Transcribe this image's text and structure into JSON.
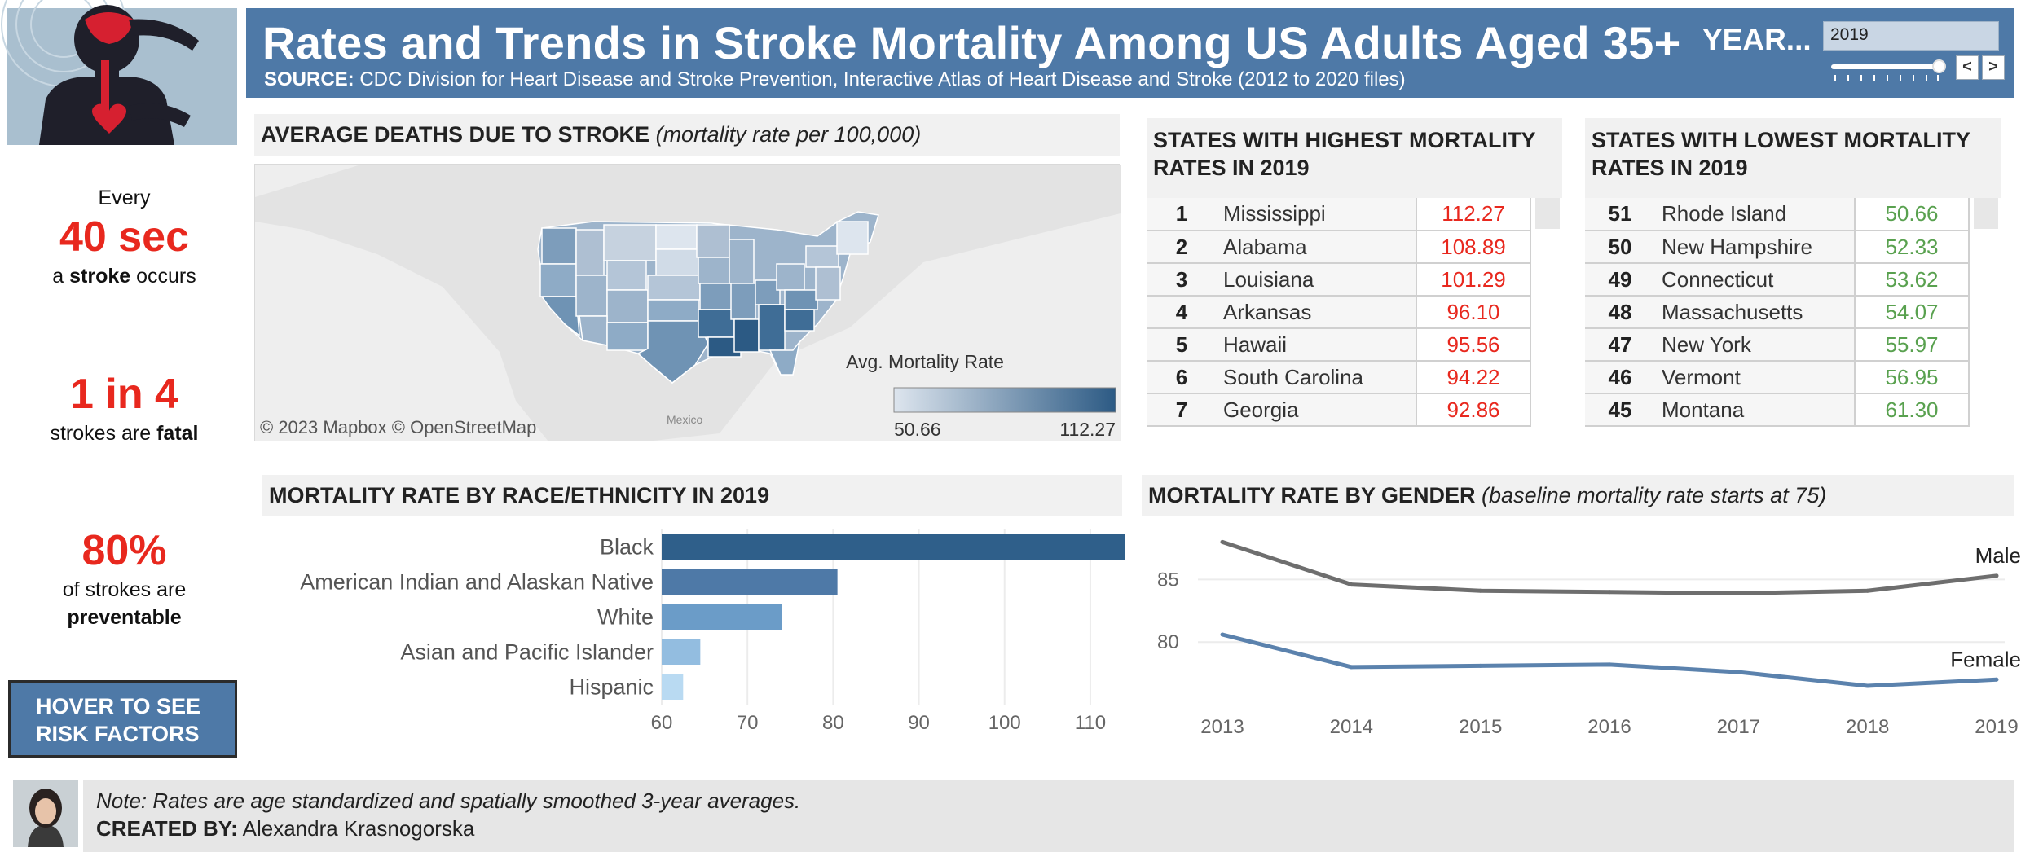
{
  "header": {
    "title": "Rates and Trends in Stroke Mortality Among US Adults Aged 35+",
    "source_label": "SOURCE:",
    "source_text": "CDC Division for Heart Disease and Stroke Prevention, Interactive Atlas of Heart Disease and Stroke (2012 to 2020 files)",
    "year_label": "YEAR...",
    "year_value": "2019",
    "year_slider_fraction": 1.0,
    "prev_glyph": "<",
    "next_glyph": ">"
  },
  "stats": [
    {
      "pre": "Every",
      "big": "40 sec",
      "post_plain": "a ",
      "post_bold": "stroke",
      "post_tail": " occurs",
      "post2_plain": "",
      "post2_bold": ""
    },
    {
      "pre": "",
      "big": "1 in 4",
      "post_plain": "strokes are ",
      "post_bold": "fatal",
      "post_tail": "",
      "post2_plain": "",
      "post2_bold": ""
    },
    {
      "pre": "",
      "big": "80%",
      "post_plain": "of strokes are",
      "post_bold": "",
      "post_tail": "",
      "post2_plain": "",
      "post2_bold": "preventable"
    }
  ],
  "hover_button": {
    "line1": "HOVER TO SEE",
    "line2": "RISK FACTORS"
  },
  "map_panel": {
    "title_bold": "AVERAGE DEATHS DUE TO STROKE",
    "title_italic": "(mortality rate per 100,000)",
    "legend_title": "Avg. Mortality Rate",
    "legend_min": "50.66",
    "legend_max": "112.27",
    "attribution": "© 2023 Mapbox  © OpenStreetMap",
    "mexico_label": "Mexico",
    "colors": {
      "low": "#dde5ee",
      "high": "#2c5a84"
    }
  },
  "highest_table": {
    "title": "STATES WITH HIGHEST MORTALITY RATES IN 2019",
    "rows": [
      {
        "rank": "1",
        "state": "Mississippi",
        "value": "112.27"
      },
      {
        "rank": "2",
        "state": "Alabama",
        "value": "108.89"
      },
      {
        "rank": "3",
        "state": "Louisiana",
        "value": "101.29"
      },
      {
        "rank": "4",
        "state": "Arkansas",
        "value": "96.10"
      },
      {
        "rank": "5",
        "state": "Hawaii",
        "value": "95.56"
      },
      {
        "rank": "6",
        "state": "South Carolina",
        "value": "94.22"
      },
      {
        "rank": "7",
        "state": "Georgia",
        "value": "92.86"
      }
    ]
  },
  "lowest_table": {
    "title": "STATES WITH LOWEST MORTALITY RATES IN 2019",
    "rows": [
      {
        "rank": "51",
        "state": "Rhode Island",
        "value": "50.66"
      },
      {
        "rank": "50",
        "state": "New Hampshire",
        "value": "52.33"
      },
      {
        "rank": "49",
        "state": "Connecticut",
        "value": "53.62"
      },
      {
        "rank": "48",
        "state": "Massachusetts",
        "value": "54.07"
      },
      {
        "rank": "47",
        "state": "New York",
        "value": "55.97"
      },
      {
        "rank": "46",
        "state": "Vermont",
        "value": "56.95"
      },
      {
        "rank": "45",
        "state": "Montana",
        "value": "61.30"
      }
    ]
  },
  "race_panel": {
    "title_bold": "MORTALITY RATE BY RACE/ETHNICITY IN 2019"
  },
  "gender_panel": {
    "title_bold": "MORTALITY RATE BY GENDER",
    "title_italic": "(baseline mortality rate starts at 75)"
  },
  "chart_data": [
    {
      "type": "bar",
      "orientation": "horizontal",
      "title": "MORTALITY RATE BY RACE/ETHNICITY IN 2019",
      "categories": [
        "Black",
        "American Indian and Alaskan Native",
        "White",
        "Asian and Pacific Islander",
        "Hispanic"
      ],
      "values": [
        114,
        80.5,
        74,
        64.5,
        62.5
      ],
      "colors": [
        "#2f5f8a",
        "#4e79a7",
        "#6b9cc8",
        "#93bde0",
        "#b9daf2"
      ],
      "xlim": [
        60,
        114
      ],
      "xticks": [
        "60",
        "70",
        "80",
        "90",
        "100",
        "110"
      ],
      "grid": true
    },
    {
      "type": "line",
      "title": "MORTALITY RATE BY GENDER",
      "x": [
        "2013",
        "2014",
        "2015",
        "2016",
        "2017",
        "2018",
        "2019"
      ],
      "series": [
        {
          "name": "Male",
          "values": [
            88.0,
            84.6,
            84.1,
            84.0,
            83.9,
            84.1,
            85.3
          ],
          "color": "#6e6e6e"
        },
        {
          "name": "Female",
          "values": [
            80.6,
            78.0,
            78.1,
            78.2,
            77.6,
            76.5,
            77.0
          ],
          "color": "#5b82ad"
        }
      ],
      "ylim": [
        75,
        89
      ],
      "yticks": [
        "80",
        "85"
      ],
      "grid": true
    }
  ],
  "footer": {
    "note": "Note: Rates are age standardized and spatially smoothed 3-year averages.",
    "credit_label": "CREATED BY:",
    "credit_name": "Alexandra Krasnogorska"
  }
}
